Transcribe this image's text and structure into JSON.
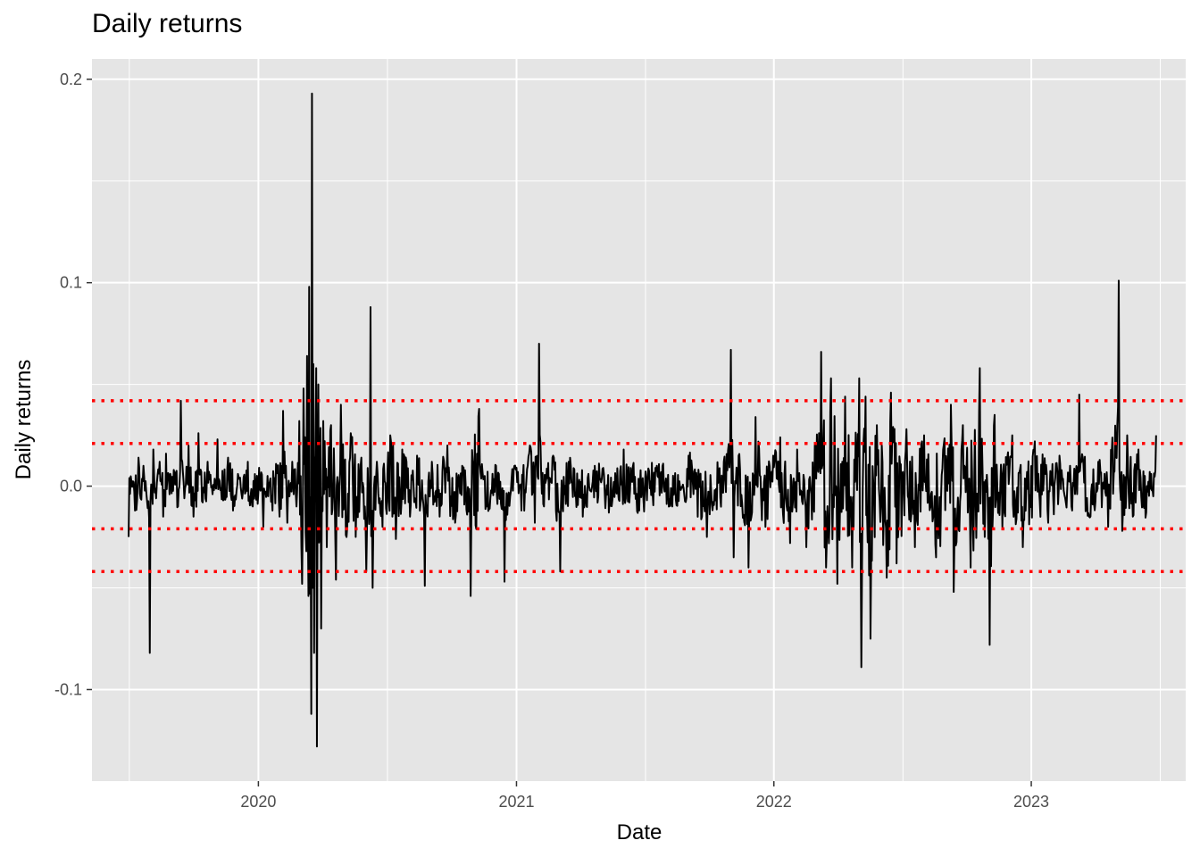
{
  "chart_data": {
    "type": "line",
    "title": "Daily returns",
    "xlabel": "Date",
    "ylabel": "Daily returns",
    "xlim": [
      "2019-05-10",
      "2023-08-08"
    ],
    "ylim": [
      -0.145,
      0.21
    ],
    "x_ticks": [
      {
        "date": "2020-01-01",
        "label": "2020"
      },
      {
        "date": "2021-01-01",
        "label": "2021"
      },
      {
        "date": "2022-01-01",
        "label": "2022"
      },
      {
        "date": "2023-01-01",
        "label": "2023"
      }
    ],
    "y_ticks": [
      {
        "value": -0.1,
        "label": "-0.1"
      },
      {
        "value": 0.0,
        "label": "0.0"
      },
      {
        "value": 0.1,
        "label": "0.1"
      },
      {
        "value": 0.2,
        "label": "0.2"
      }
    ],
    "grid": true,
    "panel_background": "#e5e5e5",
    "line_color": "#000000",
    "reference_lines": {
      "color": "#ff0000",
      "style": "dotted",
      "values": [
        0.042,
        0.021,
        -0.021,
        -0.042
      ]
    },
    "series": [
      {
        "points": [
          [
            "2019-07-01",
            -0.025
          ],
          [
            "2019-07-02",
            0.004
          ],
          [
            "2019-07-08",
            0.002
          ],
          [
            "2019-07-10",
            -0.012
          ],
          [
            "2019-07-15",
            0.014
          ],
          [
            "2019-07-18",
            -0.006
          ],
          [
            "2019-07-22",
            0.01
          ],
          [
            "2019-07-26",
            -0.003
          ],
          [
            "2019-07-31",
            -0.082
          ],
          [
            "2019-08-05",
            0.018
          ],
          [
            "2019-08-09",
            -0.006
          ],
          [
            "2019-08-14",
            0.012
          ],
          [
            "2019-08-19",
            -0.015
          ],
          [
            "2019-08-23",
            0.016
          ],
          [
            "2019-08-28",
            -0.004
          ],
          [
            "2019-09-03",
            0.008
          ],
          [
            "2019-09-09",
            -0.01
          ],
          [
            "2019-09-13",
            0.042
          ],
          [
            "2019-09-18",
            -0.006
          ],
          [
            "2019-09-24",
            0.02
          ],
          [
            "2019-10-01",
            -0.015
          ],
          [
            "2019-10-08",
            0.026
          ],
          [
            "2019-10-14",
            -0.008
          ],
          [
            "2019-10-21",
            0.012
          ],
          [
            "2019-10-28",
            -0.004
          ],
          [
            "2019-11-04",
            0.023
          ],
          [
            "2019-11-12",
            -0.007
          ],
          [
            "2019-11-19",
            0.014
          ],
          [
            "2019-11-26",
            -0.012
          ],
          [
            "2019-12-03",
            0.006
          ],
          [
            "2019-12-10",
            -0.003
          ],
          [
            "2019-12-17",
            0.012
          ],
          [
            "2019-12-24",
            -0.01
          ],
          [
            "2020-01-02",
            0.009
          ],
          [
            "2020-01-08",
            -0.02
          ],
          [
            "2020-01-14",
            0.005
          ],
          [
            "2020-01-21",
            -0.012
          ],
          [
            "2020-01-27",
            0.01
          ],
          [
            "2020-01-31",
            -0.015
          ],
          [
            "2020-02-05",
            0.037
          ],
          [
            "2020-02-11",
            -0.018
          ],
          [
            "2020-02-18",
            0.012
          ],
          [
            "2020-02-24",
            -0.01
          ],
          [
            "2020-02-28",
            0.032
          ],
          [
            "2020-03-03",
            -0.048
          ],
          [
            "2020-03-05",
            0.048
          ],
          [
            "2020-03-09",
            -0.032
          ],
          [
            "2020-03-10",
            0.064
          ],
          [
            "2020-03-12",
            -0.054
          ],
          [
            "2020-03-13",
            0.098
          ],
          [
            "2020-03-16",
            -0.112
          ],
          [
            "2020-03-17",
            0.193
          ],
          [
            "2020-03-18",
            -0.05
          ],
          [
            "2020-03-19",
            0.06
          ],
          [
            "2020-03-20",
            -0.082
          ],
          [
            "2020-03-23",
            0.058
          ],
          [
            "2020-03-24",
            -0.128
          ],
          [
            "2020-03-26",
            0.05
          ],
          [
            "2020-03-30",
            -0.07
          ],
          [
            "2020-04-02",
            0.032
          ],
          [
            "2020-04-07",
            -0.03
          ],
          [
            "2020-04-13",
            0.03
          ],
          [
            "2020-04-20",
            -0.046
          ],
          [
            "2020-04-27",
            0.04
          ],
          [
            "2020-05-04",
            -0.024
          ],
          [
            "2020-05-11",
            0.026
          ],
          [
            "2020-05-18",
            -0.025
          ],
          [
            "2020-05-26",
            0.014
          ],
          [
            "2020-06-02",
            -0.042
          ],
          [
            "2020-06-08",
            0.088
          ],
          [
            "2020-06-11",
            -0.05
          ],
          [
            "2020-06-17",
            0.012
          ],
          [
            "2020-06-25",
            -0.02
          ],
          [
            "2020-07-06",
            0.025
          ],
          [
            "2020-07-14",
            -0.026
          ],
          [
            "2020-07-23",
            0.018
          ],
          [
            "2020-08-03",
            -0.015
          ],
          [
            "2020-08-13",
            0.015
          ],
          [
            "2020-08-24",
            -0.049
          ],
          [
            "2020-09-03",
            0.012
          ],
          [
            "2020-09-14",
            -0.015
          ],
          [
            "2020-09-25",
            0.02
          ],
          [
            "2020-10-06",
            -0.018
          ],
          [
            "2020-10-16",
            0.01
          ],
          [
            "2020-10-28",
            -0.054
          ],
          [
            "2020-11-09",
            0.038
          ],
          [
            "2020-11-20",
            -0.01
          ],
          [
            "2020-12-03",
            0.01
          ],
          [
            "2020-12-15",
            -0.047
          ],
          [
            "2020-12-28",
            0.008
          ],
          [
            "2021-01-08",
            -0.012
          ],
          [
            "2021-01-20",
            0.02
          ],
          [
            "2021-01-27",
            -0.018
          ],
          [
            "2021-02-02",
            0.07
          ],
          [
            "2021-02-09",
            -0.01
          ],
          [
            "2021-02-22",
            0.015
          ],
          [
            "2021-03-04",
            -0.042
          ],
          [
            "2021-03-16",
            0.012
          ],
          [
            "2021-04-05",
            -0.015
          ],
          [
            "2021-04-22",
            0.01
          ],
          [
            "2021-05-12",
            -0.013
          ],
          [
            "2021-06-02",
            0.018
          ],
          [
            "2021-06-24",
            -0.012
          ],
          [
            "2021-07-19",
            0.01
          ],
          [
            "2021-08-10",
            -0.01
          ],
          [
            "2021-09-02",
            0.015
          ],
          [
            "2021-09-28",
            -0.025
          ],
          [
            "2021-10-22",
            0.012
          ],
          [
            "2021-11-01",
            0.067
          ],
          [
            "2021-11-05",
            -0.035
          ],
          [
            "2021-11-12",
            0.015
          ],
          [
            "2021-11-26",
            -0.04
          ],
          [
            "2021-12-06",
            0.034
          ],
          [
            "2021-12-20",
            -0.02
          ],
          [
            "2021-12-31",
            0.015
          ],
          [
            "2022-01-10",
            0.024
          ],
          [
            "2022-01-24",
            -0.028
          ],
          [
            "2022-02-03",
            0.018
          ],
          [
            "2022-02-16",
            -0.03
          ],
          [
            "2022-02-28",
            0.02
          ],
          [
            "2022-03-09",
            0.066
          ],
          [
            "2022-03-16",
            -0.04
          ],
          [
            "2022-03-23",
            0.053
          ],
          [
            "2022-04-01",
            -0.048
          ],
          [
            "2022-04-12",
            0.044
          ],
          [
            "2022-04-22",
            -0.04
          ],
          [
            "2022-05-02",
            0.053
          ],
          [
            "2022-05-05",
            -0.089
          ],
          [
            "2022-05-11",
            0.044
          ],
          [
            "2022-05-18",
            -0.075
          ],
          [
            "2022-05-27",
            0.03
          ],
          [
            "2022-06-10",
            -0.045
          ],
          [
            "2022-06-16",
            0.046
          ],
          [
            "2022-06-24",
            -0.038
          ],
          [
            "2022-07-08",
            0.028
          ],
          [
            "2022-07-20",
            -0.03
          ],
          [
            "2022-08-02",
            0.025
          ],
          [
            "2022-08-19",
            -0.035
          ],
          [
            "2022-09-09",
            0.04
          ],
          [
            "2022-09-13",
            -0.052
          ],
          [
            "2022-09-26",
            0.03
          ],
          [
            "2022-10-07",
            -0.04
          ],
          [
            "2022-10-20",
            0.058
          ],
          [
            "2022-10-27",
            -0.025
          ],
          [
            "2022-11-03",
            -0.078
          ],
          [
            "2022-11-10",
            0.035
          ],
          [
            "2022-11-21",
            -0.02
          ],
          [
            "2022-12-05",
            0.025
          ],
          [
            "2022-12-20",
            -0.03
          ],
          [
            "2023-01-06",
            0.022
          ],
          [
            "2023-01-25",
            -0.018
          ],
          [
            "2023-02-10",
            0.015
          ],
          [
            "2023-02-28",
            -0.012
          ],
          [
            "2023-03-10",
            0.045
          ],
          [
            "2023-03-24",
            -0.015
          ],
          [
            "2023-04-06",
            0.012
          ],
          [
            "2023-04-20",
            -0.02
          ],
          [
            "2023-05-05",
            0.101
          ],
          [
            "2023-05-10",
            -0.022
          ],
          [
            "2023-05-17",
            0.025
          ],
          [
            "2023-05-25",
            -0.015
          ],
          [
            "2023-06-02",
            0.018
          ],
          [
            "2023-06-13",
            -0.013
          ],
          [
            "2023-06-20",
            0.006
          ],
          [
            "2023-06-23",
            -0.005
          ],
          [
            "2023-06-27",
            0.025
          ]
        ]
      }
    ]
  }
}
